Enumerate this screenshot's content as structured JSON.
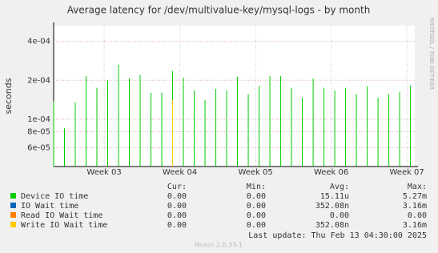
{
  "chart_data": {
    "type": "spike",
    "title": "Average latency for /dev/multivalue-key/mysql-logs - by month",
    "y_label": "seconds",
    "log_y": true,
    "grid": true,
    "ylim": [
      4.3e-05,
      0.00053
    ],
    "yticks": [
      {
        "value": 6e-05,
        "label": "6e-05"
      },
      {
        "value": 8e-05,
        "label": "8e-05"
      },
      {
        "value": 0.0001,
        "label": "1e-04"
      },
      {
        "value": 0.0002,
        "label": "2e-04"
      },
      {
        "value": 0.0004,
        "label": "4e-04"
      }
    ],
    "xlim": [
      0,
      33.4
    ],
    "xticks": [
      {
        "value": 4.67,
        "label": "Week 03"
      },
      {
        "value": 11.67,
        "label": "Week 04"
      },
      {
        "value": 18.67,
        "label": "Week 05"
      },
      {
        "value": 25.67,
        "label": "Week 06"
      },
      {
        "value": 32.67,
        "label": "Week 07"
      }
    ],
    "x": [
      0,
      1,
      2,
      3,
      4,
      5,
      6,
      7,
      8,
      9,
      10,
      11,
      12,
      13,
      14,
      15,
      16,
      17,
      18,
      19,
      20,
      21,
      22,
      23,
      24,
      25,
      26,
      27,
      28,
      29,
      30,
      31,
      32,
      33
    ],
    "legend_headers": [
      "Cur:",
      "Min:",
      "Avg:",
      "Max:"
    ],
    "series": [
      {
        "name": "Device IO time",
        "color": "#00cc00",
        "cur": "0.00",
        "min": "0.00",
        "avg": "15.11u",
        "max": "5.27m",
        "values": [
          0.000137,
          8.5e-05,
          0.000135,
          0.000216,
          0.000175,
          0.0002,
          0.000264,
          0.000207,
          0.00022,
          0.00016,
          0.00016,
          0.000236,
          0.00021,
          0.000167,
          0.000141,
          0.000172,
          0.000167,
          0.000213,
          0.000156,
          0.00018,
          0.000216,
          0.000216,
          0.000175,
          0.000147,
          0.000207,
          0.000175,
          0.000167,
          0.000175,
          0.000156,
          0.00018,
          0.000147,
          0.000156,
          0.000163,
          0.000182
        ]
      },
      {
        "name": "IO Wait time",
        "color": "#0066b3",
        "cur": "0.00",
        "min": "0.00",
        "avg": "352.08n",
        "max": "3.16m",
        "values": [
          null,
          null,
          null,
          null,
          null,
          null,
          null,
          null,
          null,
          null,
          null,
          null,
          null,
          null,
          null,
          null,
          null,
          null,
          null,
          null,
          null,
          null,
          null,
          null,
          null,
          null,
          null,
          null,
          null,
          null,
          null,
          null,
          null,
          null
        ]
      },
      {
        "name": "Read IO Wait time",
        "color": "#ff8000",
        "cur": "0.00",
        "min": "0.00",
        "avg": "0.00",
        "max": "0.00",
        "values": [
          null,
          null,
          null,
          null,
          null,
          null,
          null,
          null,
          null,
          null,
          null,
          null,
          null,
          null,
          null,
          null,
          null,
          null,
          null,
          null,
          null,
          null,
          null,
          null,
          null,
          null,
          null,
          null,
          null,
          null,
          null,
          null,
          null,
          null
        ]
      },
      {
        "name": "Write IO Wait time",
        "color": "#ffcc00",
        "cur": "0.00",
        "min": "0.00",
        "avg": "352.08n",
        "max": "3.16m",
        "values": [
          null,
          null,
          null,
          null,
          null,
          null,
          null,
          null,
          null,
          null,
          null,
          0.00014,
          null,
          null,
          null,
          null,
          null,
          null,
          null,
          null,
          null,
          null,
          null,
          null,
          null,
          null,
          null,
          null,
          null,
          null,
          null,
          null,
          null,
          null
        ]
      }
    ],
    "last_update": "Last update:  Thu Feb 13 04:30:00 2025",
    "footer": "Munin 2.0.33-1",
    "watermark": "RRDTOOL / TOBI OETIKER"
  }
}
